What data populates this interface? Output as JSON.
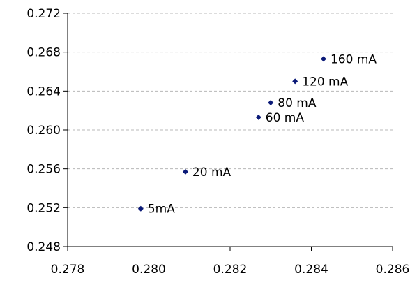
{
  "chart_data": {
    "type": "scatter",
    "title": "",
    "xlabel": "",
    "ylabel": "",
    "xlim": [
      0.278,
      0.286
    ],
    "ylim": [
      0.248,
      0.272
    ],
    "grid": "horizontal dashed",
    "legend": "none",
    "x_ticks": [
      "0.278",
      "0.280",
      "0.282",
      "0.284",
      "0.286"
    ],
    "y_ticks": [
      "0.248",
      "0.252",
      "0.256",
      "0.260",
      "0.264",
      "0.268",
      "0.272"
    ],
    "colors": {
      "marker": "#0b1a78",
      "grid": "#b8b8b8",
      "axis": "#000000"
    },
    "points": [
      {
        "label": "5mA",
        "x": 0.2798,
        "y": 0.2519
      },
      {
        "label": "20 mA",
        "x": 0.2809,
        "y": 0.2557
      },
      {
        "label": "60 mA",
        "x": 0.2827,
        "y": 0.2613
      },
      {
        "label": "80 mA",
        "x": 0.283,
        "y": 0.2628
      },
      {
        "label": "120 mA",
        "x": 0.2836,
        "y": 0.265
      },
      {
        "label": "160 mA",
        "x": 0.2843,
        "y": 0.2673
      }
    ]
  }
}
